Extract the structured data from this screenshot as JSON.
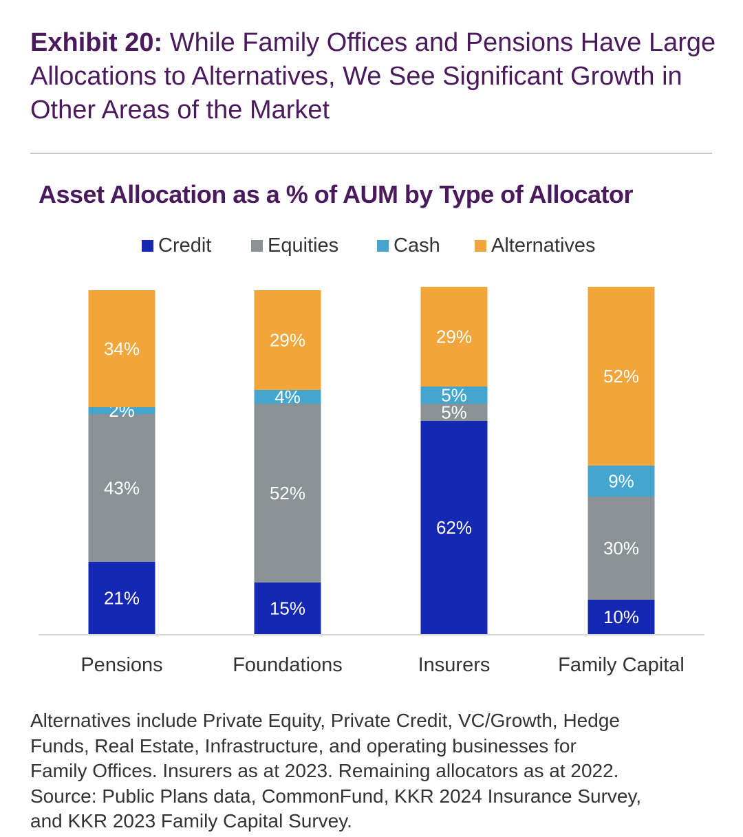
{
  "header": {
    "lead": "Exhibit 20:",
    "title": "While Family Offices and Pensions Have Large Allocations to Alternatives, We See Significant Growth in Other Areas of the Market"
  },
  "chart_data": {
    "type": "bar",
    "stacked": true,
    "title": "Asset Allocation as a % of AUM by Type of Allocator",
    "xlabel": "",
    "ylabel": "",
    "ylim": [
      0,
      100
    ],
    "grid": false,
    "legend_position": "top",
    "categories": [
      "Pensions",
      "Foundations",
      "Insurers",
      "Family Capital"
    ],
    "series": [
      {
        "name": "Credit",
        "color": "#1428b4",
        "values": [
          21,
          15,
          62,
          10
        ]
      },
      {
        "name": "Equities",
        "color": "#8a9296",
        "values": [
          43,
          52,
          5,
          30
        ]
      },
      {
        "name": "Cash",
        "color": "#44a6cf",
        "values": [
          2,
          4,
          5,
          9
        ]
      },
      {
        "name": "Alternatives",
        "color": "#f2a53a",
        "values": [
          34,
          29,
          29,
          52
        ]
      }
    ],
    "data_labels": [
      [
        "21%",
        "15%",
        "62%",
        "10%"
      ],
      [
        "43%",
        "52%",
        "5%",
        "30%"
      ],
      [
        "2%",
        "4%",
        "5%",
        "9%"
      ],
      [
        "34%",
        "29%",
        "29%",
        "52%"
      ]
    ]
  },
  "footnote": {
    "lines": [
      "Alternatives include Private Equity, Private Credit, VC/Growth, Hedge",
      "Funds, Real Estate, Infrastructure, and operating businesses for",
      "Family Offices. Insurers as at 2023. Remaining allocators as at 2022.",
      "Source: Public Plans data, CommonFund, KKR 2024 Insurance Survey,",
      "and KKR 2023 Family Capital Survey."
    ]
  }
}
